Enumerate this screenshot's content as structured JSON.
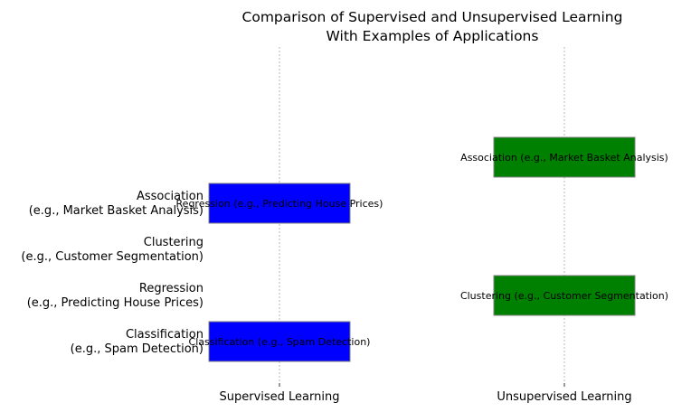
{
  "chart_data": {
    "type": "bar",
    "orientation": "horizontal-offset",
    "title": "Comparison of Supervised and Unsupervised Learning\nWith Examples of Applications",
    "x_categories": [
      "Supervised Learning",
      "Unsupervised Learning"
    ],
    "y_categories": [
      "Classification\n(e.g., Spam Detection)",
      "Regression\n(e.g., Predicting House Prices)",
      "Clustering\n(e.g., Customer Segmentation)",
      "Association\n(e.g., Market Basket Analysis)"
    ],
    "bars": [
      {
        "x_category": "Supervised Learning",
        "y_value": 1,
        "label": "Classification (e.g., Spam Detection)",
        "color": "#0000ff"
      },
      {
        "x_category": "Supervised Learning",
        "y_value": 4,
        "label": "Regression (e.g., Predicting House Prices)",
        "color": "#0000ff"
      },
      {
        "x_category": "Unsupervised Learning",
        "y_value": 2,
        "label": "Clustering (e.g., Customer Segmentation)",
        "color": "#008000"
      },
      {
        "x_category": "Unsupervised Learning",
        "y_value": 5,
        "label": "Association (e.g., Market Basket Analysis)",
        "color": "#008000"
      }
    ],
    "grid": "vertical-dashed",
    "xlabel": "",
    "ylabel": ""
  }
}
